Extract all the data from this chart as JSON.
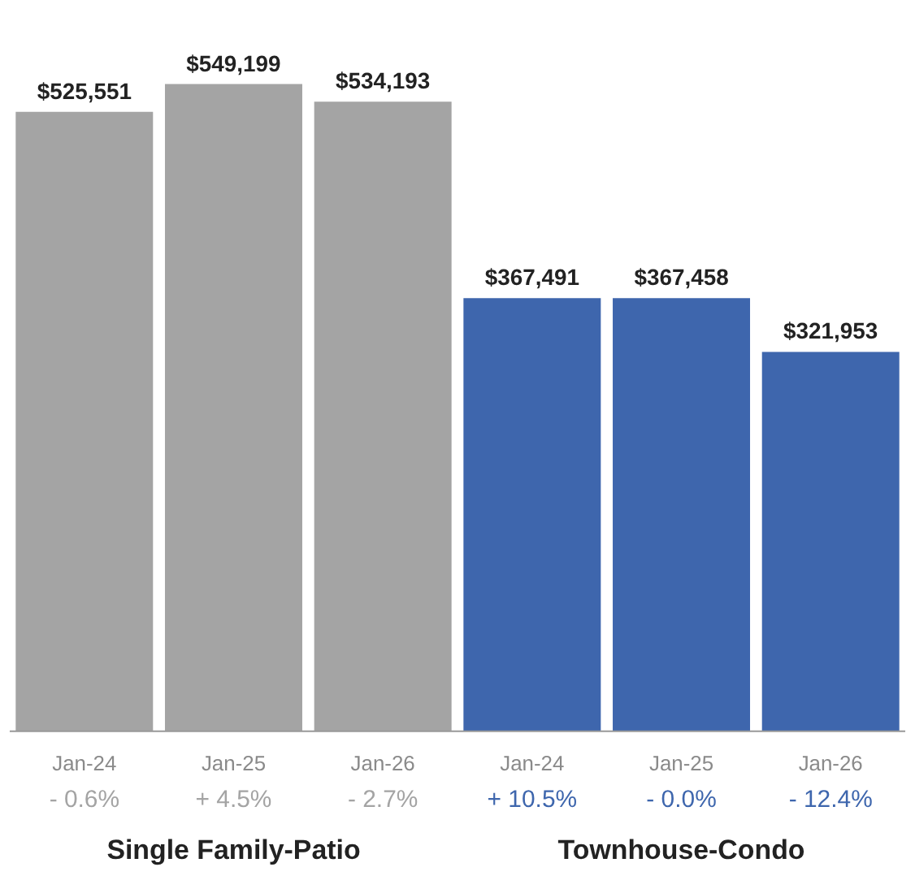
{
  "chart_data": {
    "type": "bar",
    "categories": [
      "Jan-24",
      "Jan-25",
      "Jan-26",
      "Jan-24",
      "Jan-25",
      "Jan-26"
    ],
    "values": [
      525551,
      549199,
      534193,
      367491,
      367458,
      321953
    ],
    "colors": [
      "#a4a4a4",
      "#a4a4a4",
      "#a4a4a4",
      "#3e66ad",
      "#3e66ad",
      "#3e66ad"
    ],
    "value_labels": [
      "$525,551",
      "$549,199",
      "$534,193",
      "$367,491",
      "$367,458",
      "$321,953"
    ],
    "annotations": [
      "- 0.6%",
      "+ 4.5%",
      "- 2.7%",
      "+ 10.5%",
      "- 0.0%",
      "- 12.4%",
      "Single Family-Patio",
      "Townhouse-Condo"
    ]
  }
}
